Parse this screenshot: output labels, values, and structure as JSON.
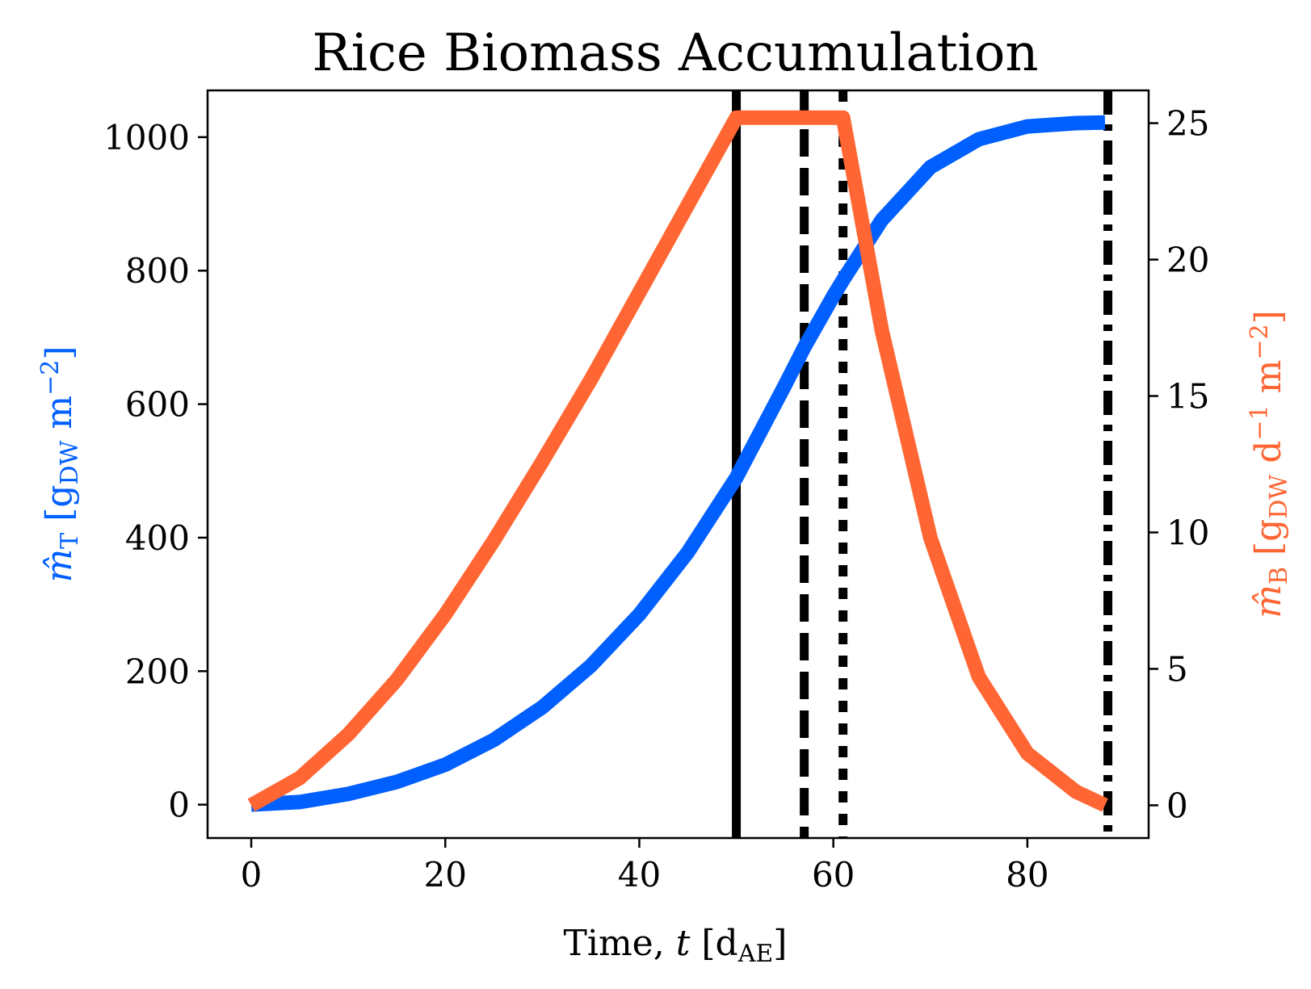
{
  "chart_data": {
    "type": "line",
    "title": "Rice Biomass Accumulation",
    "xlabel": {
      "main": "Time, ",
      "var": "t",
      "open": " [d",
      "sub": "AE",
      "close": "]"
    },
    "ylabel_left": {
      "sym": "m̂",
      "sub": "T",
      "unit_open": " [g",
      "unit_sub": "DW",
      "unit_rest": " m",
      "unit_sup": "−2",
      "unit_close": "]"
    },
    "ylabel_right": {
      "sym": "m̂",
      "sub": "B",
      "unit_open": " [g",
      "unit_sub": "DW",
      "unit_rest": " d",
      "unit_sup1": "−1",
      "unit_rest2": " m",
      "unit_sup2": "−2",
      "unit_close": "]"
    },
    "xlim": [
      -4.5,
      92.5
    ],
    "ylim_left": [
      -50,
      1070
    ],
    "ylim_right": [
      -1.2,
      26.2
    ],
    "x_ticks": [
      0,
      20,
      40,
      60,
      80
    ],
    "y_left_ticks": [
      0,
      200,
      400,
      600,
      800,
      1000
    ],
    "y_right_ticks": [
      0,
      5,
      10,
      15,
      20,
      25
    ],
    "colors": {
      "left_series": "#005FFF",
      "right_series": "#FF6633",
      "vlines": "#000000"
    },
    "series": [
      {
        "axis": "left",
        "color": "#005FFF",
        "x": [
          0,
          5,
          10,
          15,
          20,
          25,
          30,
          35,
          40,
          45,
          50,
          55,
          57,
          60,
          61,
          65,
          70,
          75,
          80,
          85,
          88
        ],
        "values": [
          0,
          4,
          16,
          34,
          60,
          97,
          146,
          208,
          285,
          378,
          490,
          628,
          685,
          762,
          786,
          876,
          955,
          997,
          1016,
          1021,
          1022
        ]
      },
      {
        "axis": "right",
        "color": "#FF6633",
        "x": [
          0,
          5,
          10,
          15,
          20,
          25,
          30,
          35,
          40,
          45,
          50,
          55,
          57,
          60,
          61,
          65,
          70,
          75,
          80,
          85,
          88
        ],
        "values": [
          0,
          1.0,
          2.6,
          4.6,
          7.0,
          9.7,
          12.6,
          15.6,
          18.8,
          22.0,
          25.2,
          25.2,
          25.2,
          25.2,
          25.2,
          17.4,
          9.8,
          4.7,
          1.9,
          0.5,
          0.0
        ]
      }
    ],
    "vlines": [
      {
        "x": 50,
        "style": "solid"
      },
      {
        "x": 57,
        "style": "dashed"
      },
      {
        "x": 61,
        "style": "dotted"
      },
      {
        "x": 88.3,
        "style": "dashdot"
      }
    ],
    "grid": false,
    "legend": "none"
  }
}
